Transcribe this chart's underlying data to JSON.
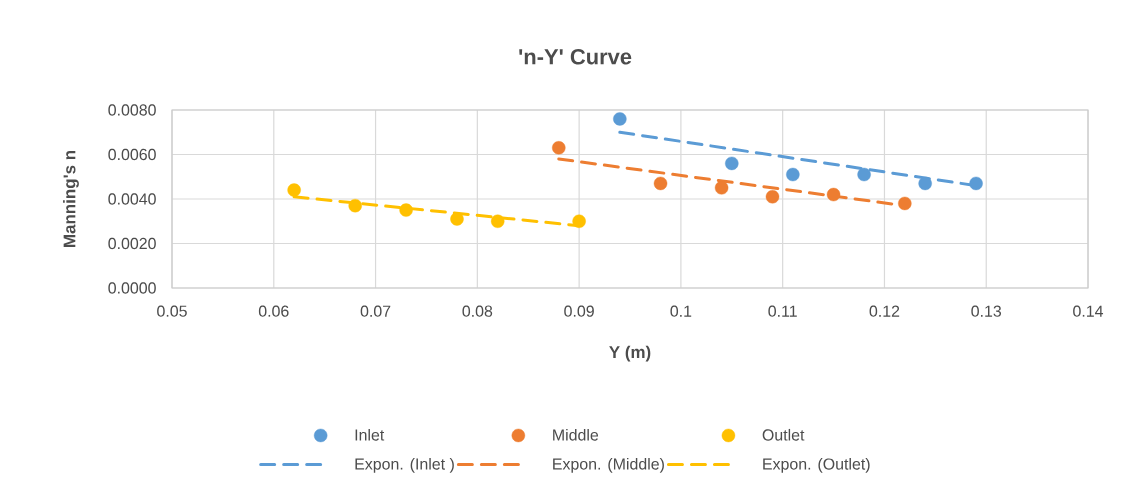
{
  "chart_data": {
    "type": "scatter",
    "title": "'n-Y' Curve",
    "xlabel": "Y (m)",
    "ylabel": "Manning's n",
    "xlim": [
      0.05,
      0.14
    ],
    "xticks": [
      0.05,
      0.06,
      0.07,
      0.08,
      0.09,
      0.1,
      0.11,
      0.12,
      0.13,
      0.14
    ],
    "ylim": [
      0,
      0.008
    ],
    "yticks": [
      {
        "value": 0,
        "label": "0.0000"
      },
      {
        "value": 0.002,
        "label": "0.0020"
      },
      {
        "value": 0.004,
        "label": "0.0040"
      },
      {
        "value": 0.006,
        "label": "0.0060"
      },
      {
        "value": 0.008,
        "label": "0.0080"
      }
    ],
    "grid": true,
    "legend": "bottom",
    "series": [
      {
        "name": "Inlet",
        "type": "scatter",
        "marker": "circle",
        "color": "#5b9bd5",
        "x": [
          0.094,
          0.105,
          0.111,
          0.118,
          0.124,
          0.129
        ],
        "values": [
          0.0076,
          0.0056,
          0.0051,
          0.0051,
          0.0047,
          0.0047
        ]
      },
      {
        "name": "Middle",
        "type": "scatter",
        "marker": "circle",
        "color": "#ed7d31",
        "x": [
          0.088,
          0.098,
          0.104,
          0.109,
          0.115,
          0.122
        ],
        "values": [
          0.0063,
          0.0047,
          0.0045,
          0.0041,
          0.0042,
          0.0038
        ]
      },
      {
        "name": "Outlet",
        "type": "scatter",
        "marker": "circle",
        "color": "#ffc000",
        "x": [
          0.062,
          0.068,
          0.073,
          0.078,
          0.082,
          0.09
        ],
        "values": [
          0.0044,
          0.0037,
          0.0035,
          0.0031,
          0.003,
          0.003
        ]
      },
      {
        "name": "Expon. (Inlet )",
        "type": "line",
        "marker": "none",
        "line_style": "dashed",
        "color": "#5b9bd5",
        "x": [
          0.094,
          0.129
        ],
        "values": [
          0.007,
          0.0046
        ]
      },
      {
        "name": "Expon. (Middle)",
        "type": "line",
        "marker": "none",
        "line_style": "dashed",
        "color": "#ed7d31",
        "x": [
          0.088,
          0.122
        ],
        "values": [
          0.0058,
          0.0037
        ]
      },
      {
        "name": "Expon. (Outlet)",
        "type": "line",
        "marker": "none",
        "line_style": "dashed",
        "color": "#ffc000",
        "x": [
          0.062,
          0.09
        ],
        "values": [
          0.0041,
          0.0028
        ]
      }
    ]
  }
}
